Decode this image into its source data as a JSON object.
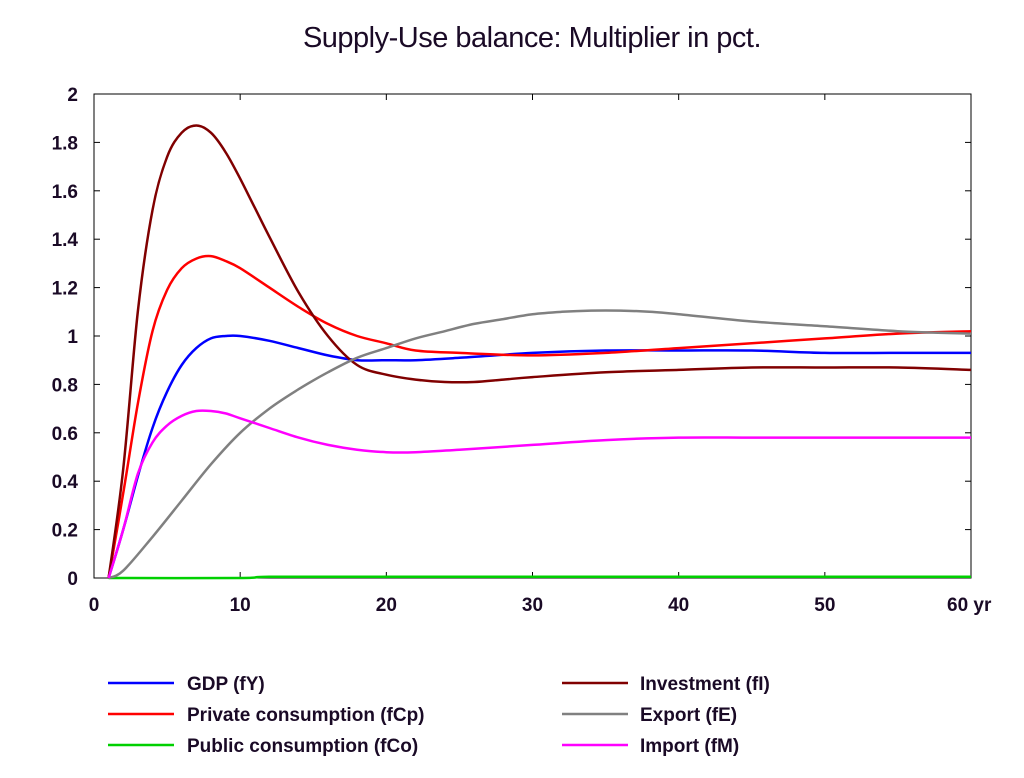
{
  "chart_data": {
    "type": "line",
    "title": "Supply-Use balance: Multiplier in pct.",
    "xlabel": "",
    "ylabel": "",
    "x_unit": "yr",
    "xlim": [
      0,
      60
    ],
    "ylim": [
      0,
      2
    ],
    "x_ticks": [
      "0",
      "10",
      "20",
      "30",
      "40",
      "50",
      "60 yr"
    ],
    "y_ticks": [
      "0",
      "0.2",
      "0.4",
      "0.6",
      "0.8",
      "1",
      "1.2",
      "1.4",
      "1.6",
      "1.8",
      "2"
    ],
    "grid": false,
    "legend_position": "bottom",
    "series": [
      {
        "name": "GDP (fY)",
        "color": "#0000ff",
        "x": [
          1,
          2,
          3,
          4,
          5,
          6,
          7,
          8,
          9,
          10,
          12,
          14,
          16,
          18,
          20,
          22,
          25,
          30,
          35,
          40,
          45,
          50,
          55,
          60
        ],
        "y": [
          0,
          0.2,
          0.42,
          0.62,
          0.77,
          0.88,
          0.95,
          0.99,
          1.0,
          1.0,
          0.98,
          0.95,
          0.92,
          0.9,
          0.9,
          0.9,
          0.91,
          0.93,
          0.94,
          0.94,
          0.94,
          0.93,
          0.93,
          0.93
        ]
      },
      {
        "name": "Private consumption (fCp)",
        "color": "#ff0000",
        "x": [
          1,
          2,
          3,
          4,
          5,
          6,
          7,
          8,
          9,
          10,
          12,
          14,
          16,
          18,
          20,
          22,
          25,
          30,
          35,
          40,
          45,
          50,
          55,
          60
        ],
        "y": [
          0,
          0.35,
          0.72,
          1.02,
          1.19,
          1.28,
          1.32,
          1.33,
          1.31,
          1.28,
          1.2,
          1.12,
          1.05,
          1.0,
          0.97,
          0.94,
          0.93,
          0.92,
          0.93,
          0.95,
          0.97,
          0.99,
          1.01,
          1.02
        ]
      },
      {
        "name": "Public consumption (fCo)",
        "color": "#00d000",
        "x": [
          1,
          10,
          12,
          20,
          30,
          40,
          50,
          60
        ],
        "y": [
          0,
          0,
          0.005,
          0.005,
          0.005,
          0.005,
          0.005,
          0.005
        ]
      },
      {
        "name": "Investment (fI)",
        "color": "#800000",
        "x": [
          1,
          2,
          3,
          4,
          5,
          6,
          7,
          8,
          9,
          10,
          11,
          12,
          14,
          16,
          18,
          20,
          22,
          24,
          26,
          28,
          30,
          35,
          40,
          45,
          50,
          55,
          60
        ],
        "y": [
          0,
          0.45,
          1.1,
          1.52,
          1.74,
          1.84,
          1.87,
          1.84,
          1.76,
          1.65,
          1.53,
          1.41,
          1.18,
          1.0,
          0.88,
          0.84,
          0.82,
          0.81,
          0.81,
          0.82,
          0.83,
          0.85,
          0.86,
          0.87,
          0.87,
          0.87,
          0.86
        ]
      },
      {
        "name": "Export (fE)",
        "color": "#808080",
        "x": [
          1,
          2,
          4,
          6,
          8,
          10,
          12,
          14,
          16,
          18,
          20,
          22,
          24,
          26,
          28,
          30,
          32,
          34,
          36,
          38,
          40,
          45,
          50,
          55,
          60
        ],
        "y": [
          0,
          0.03,
          0.17,
          0.32,
          0.47,
          0.6,
          0.7,
          0.78,
          0.85,
          0.91,
          0.95,
          0.99,
          1.02,
          1.05,
          1.07,
          1.09,
          1.1,
          1.105,
          1.105,
          1.1,
          1.09,
          1.06,
          1.04,
          1.02,
          1.01
        ]
      },
      {
        "name": "Import (fM)",
        "color": "#ff00ff",
        "x": [
          1,
          2,
          3,
          4,
          5,
          6,
          7,
          8,
          9,
          10,
          12,
          14,
          16,
          18,
          20,
          22,
          25,
          30,
          35,
          40,
          45,
          50,
          55,
          60
        ],
        "y": [
          0,
          0.2,
          0.43,
          0.56,
          0.63,
          0.67,
          0.69,
          0.69,
          0.68,
          0.66,
          0.62,
          0.58,
          0.55,
          0.53,
          0.52,
          0.52,
          0.53,
          0.55,
          0.57,
          0.58,
          0.58,
          0.58,
          0.58,
          0.58
        ]
      }
    ]
  }
}
